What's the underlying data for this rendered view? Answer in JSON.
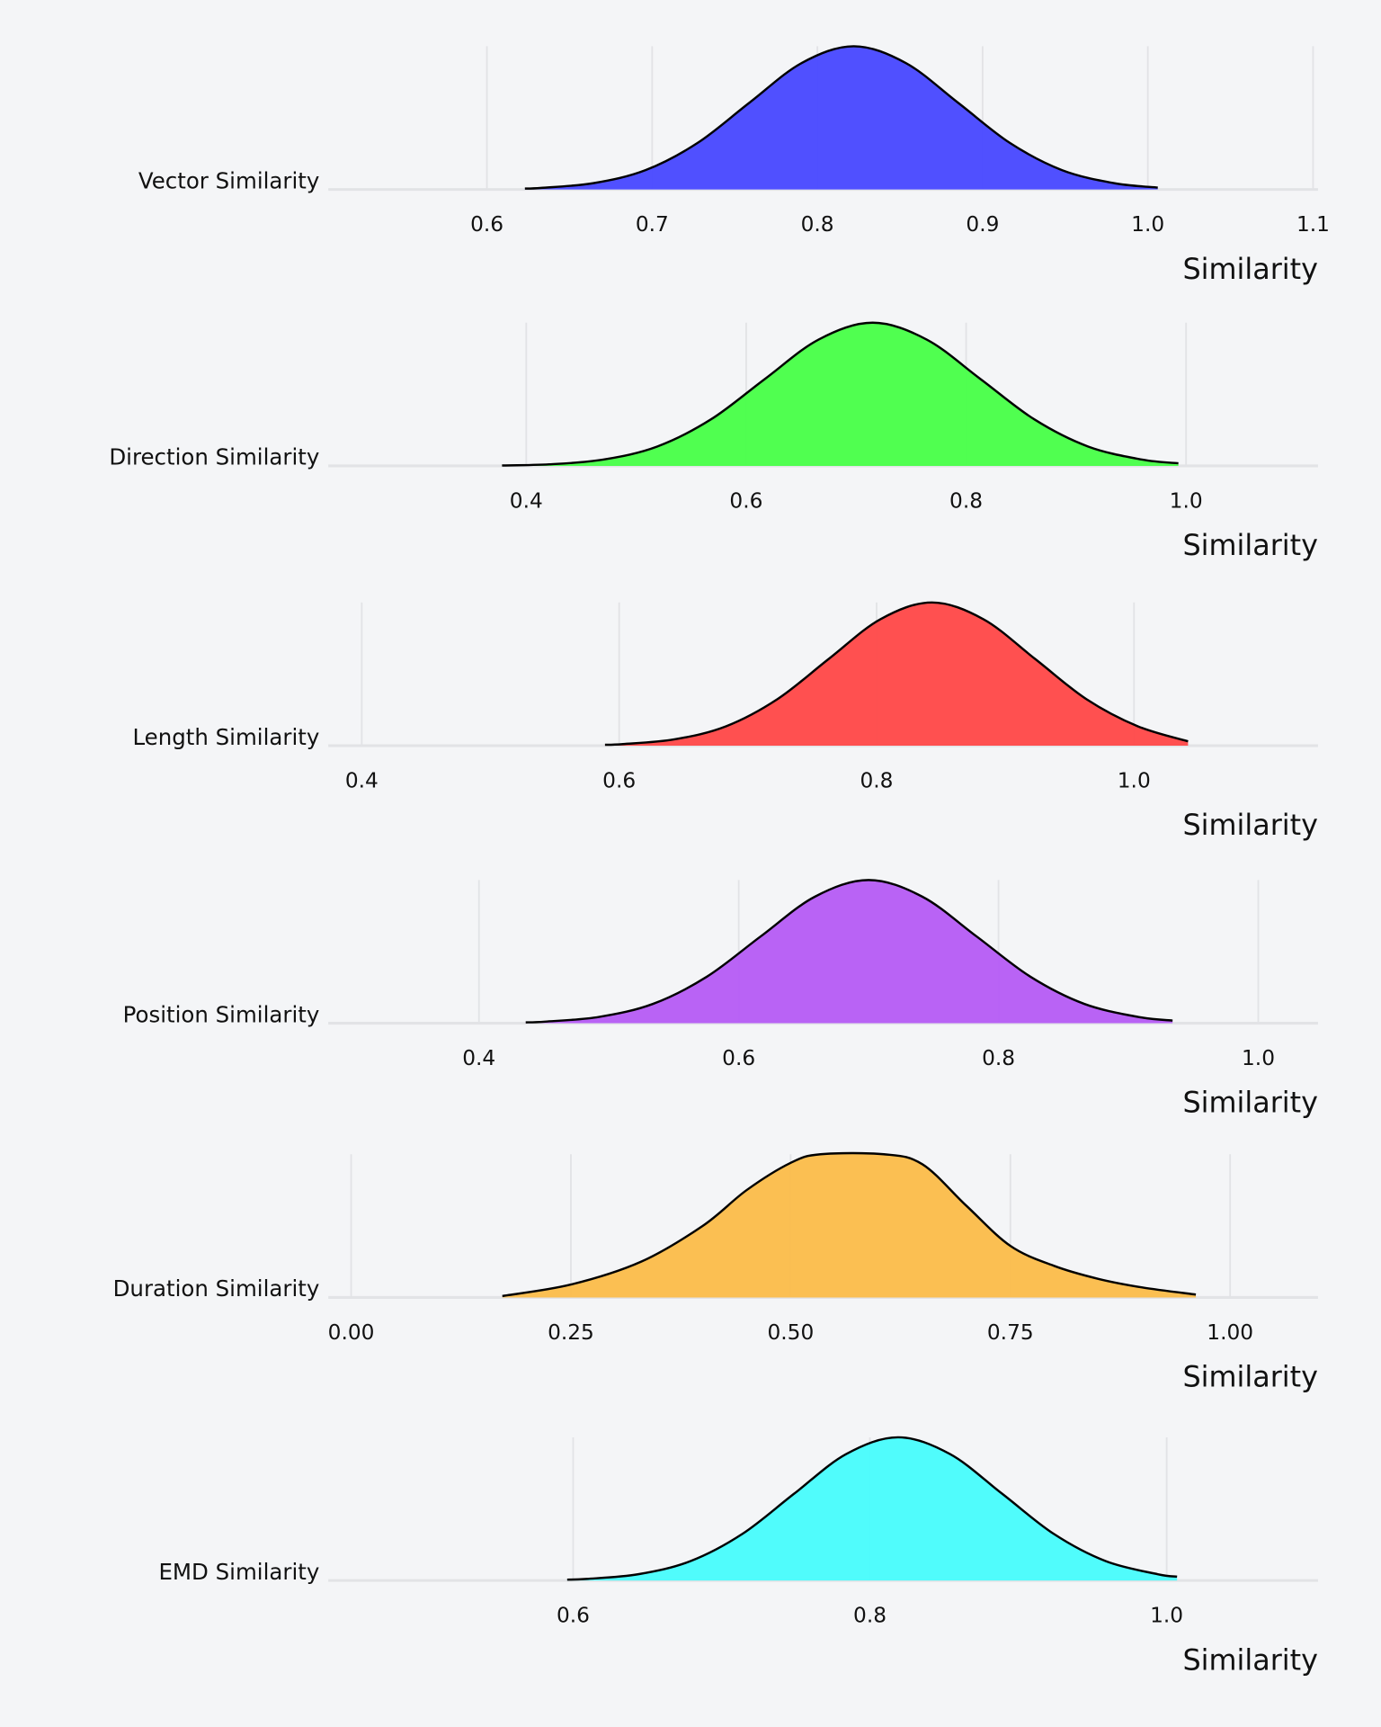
{
  "chart_data": [
    {
      "type": "area",
      "title": "",
      "ylabel": "Vector Similarity",
      "xlabel": "Similarity",
      "color": "#4a4aff",
      "xlim": [
        0.504,
        1.103
      ],
      "ticks": [
        0.6,
        0.7,
        0.8,
        0.9,
        1.0,
        1.1
      ],
      "tick_labels": [
        "0.6",
        "0.7",
        "0.8",
        "0.9",
        "1.0",
        "1.1"
      ],
      "x": [
        0.623,
        0.633,
        0.6645,
        0.696,
        0.7275,
        0.759,
        0.7905,
        0.822,
        0.8535,
        0.885,
        0.9165,
        0.948,
        0.9795,
        1.006
      ],
      "y": [
        0.006,
        0.011,
        0.044,
        0.135,
        0.325,
        0.607,
        0.883,
        1,
        0.883,
        0.607,
        0.325,
        0.135,
        0.044,
        0.013
      ]
    },
    {
      "type": "area",
      "title": "",
      "ylabel": "Direction Similarity",
      "xlabel": "Similarity",
      "color": "#4aff4a",
      "xlim": [
        0.22,
        1.12
      ],
      "ticks": [
        0.4,
        0.6,
        0.8,
        1.0
      ],
      "tick_labels": [
        "0.4",
        "0.6",
        "0.8",
        "1.0"
      ],
      "x": [
        0.378,
        0.421,
        0.47,
        0.519,
        0.568,
        0.617,
        0.666,
        0.715,
        0.764,
        0.813,
        0.862,
        0.911,
        0.96,
        0.993
      ],
      "y": [
        0.003,
        0.011,
        0.044,
        0.135,
        0.325,
        0.607,
        0.883,
        1,
        0.883,
        0.607,
        0.325,
        0.135,
        0.044,
        0.018
      ]
    },
    {
      "type": "area",
      "title": "",
      "ylabel": "Length Similarity",
      "xlabel": "Similarity",
      "color": "#ff4a4a",
      "xlim": [
        0.374,
        1.143
      ],
      "ticks": [
        0.4,
        0.6,
        0.8,
        1.0
      ],
      "tick_labels": [
        "0.4",
        "0.6",
        "0.8",
        "1.0"
      ],
      "x": [
        0.589,
        0.603,
        0.643,
        0.683,
        0.723,
        0.763,
        0.803,
        0.843,
        0.883,
        0.923,
        0.963,
        1.003,
        1.042
      ],
      "y": [
        0.006,
        0.011,
        0.044,
        0.135,
        0.325,
        0.607,
        0.883,
        1,
        0.883,
        0.607,
        0.325,
        0.135,
        0.03
      ]
    },
    {
      "type": "area",
      "title": "",
      "ylabel": "Position Similarity",
      "xlabel": "Similarity",
      "color": "#b75ef5",
      "xlim": [
        0.284,
        1.046
      ],
      "ticks": [
        0.4,
        0.6,
        0.8,
        1.0
      ],
      "tick_labels": [
        "0.4",
        "0.6",
        "0.8",
        "1.0"
      ],
      "x": [
        0.436,
        0.451,
        0.4925,
        0.534,
        0.5755,
        0.617,
        0.6585,
        0.7,
        0.7415,
        0.783,
        0.8245,
        0.866,
        0.9075,
        0.934
      ],
      "y": [
        0.006,
        0.011,
        0.044,
        0.135,
        0.325,
        0.607,
        0.883,
        1,
        0.883,
        0.607,
        0.325,
        0.135,
        0.044,
        0.018
      ]
    },
    {
      "type": "area",
      "title": "",
      "ylabel": "Duration Similarity",
      "xlabel": "Similarity",
      "color": "#fbbd4c",
      "xlim": [
        -0.026,
        1.1
      ],
      "ticks": [
        0,
        0.25,
        0.5,
        0.75,
        1.0
      ],
      "tick_labels": [
        "0.00",
        "0.25",
        "0.50",
        "0.75",
        "1.00"
      ],
      "x": [
        0.172,
        0.25,
        0.33,
        0.4,
        0.45,
        0.5,
        0.534,
        0.606,
        0.65,
        0.7,
        0.75,
        0.8,
        0.85,
        0.9,
        0.961
      ],
      "y": [
        0.01,
        0.09,
        0.25,
        0.5,
        0.75,
        0.94,
        1,
        1,
        0.93,
        0.64,
        0.36,
        0.22,
        0.13,
        0.07,
        0.02
      ]
    },
    {
      "type": "area",
      "title": "",
      "ylabel": "EMD Similarity",
      "xlabel": "Similarity",
      "color": "#4afcfc",
      "xlim": [
        0.435,
        1.102
      ],
      "ticks": [
        0.6,
        0.8,
        1.0
      ],
      "tick_labels": [
        "0.6",
        "0.8",
        "1.0"
      ],
      "x": [
        0.596,
        0.609,
        0.644,
        0.679,
        0.714,
        0.749,
        0.784,
        0.819,
        0.854,
        0.889,
        0.924,
        0.959,
        0.994,
        1.007
      ],
      "y": [
        0.006,
        0.011,
        0.044,
        0.135,
        0.325,
        0.607,
        0.883,
        1,
        0.883,
        0.607,
        0.325,
        0.135,
        0.044,
        0.027
      ]
    }
  ]
}
